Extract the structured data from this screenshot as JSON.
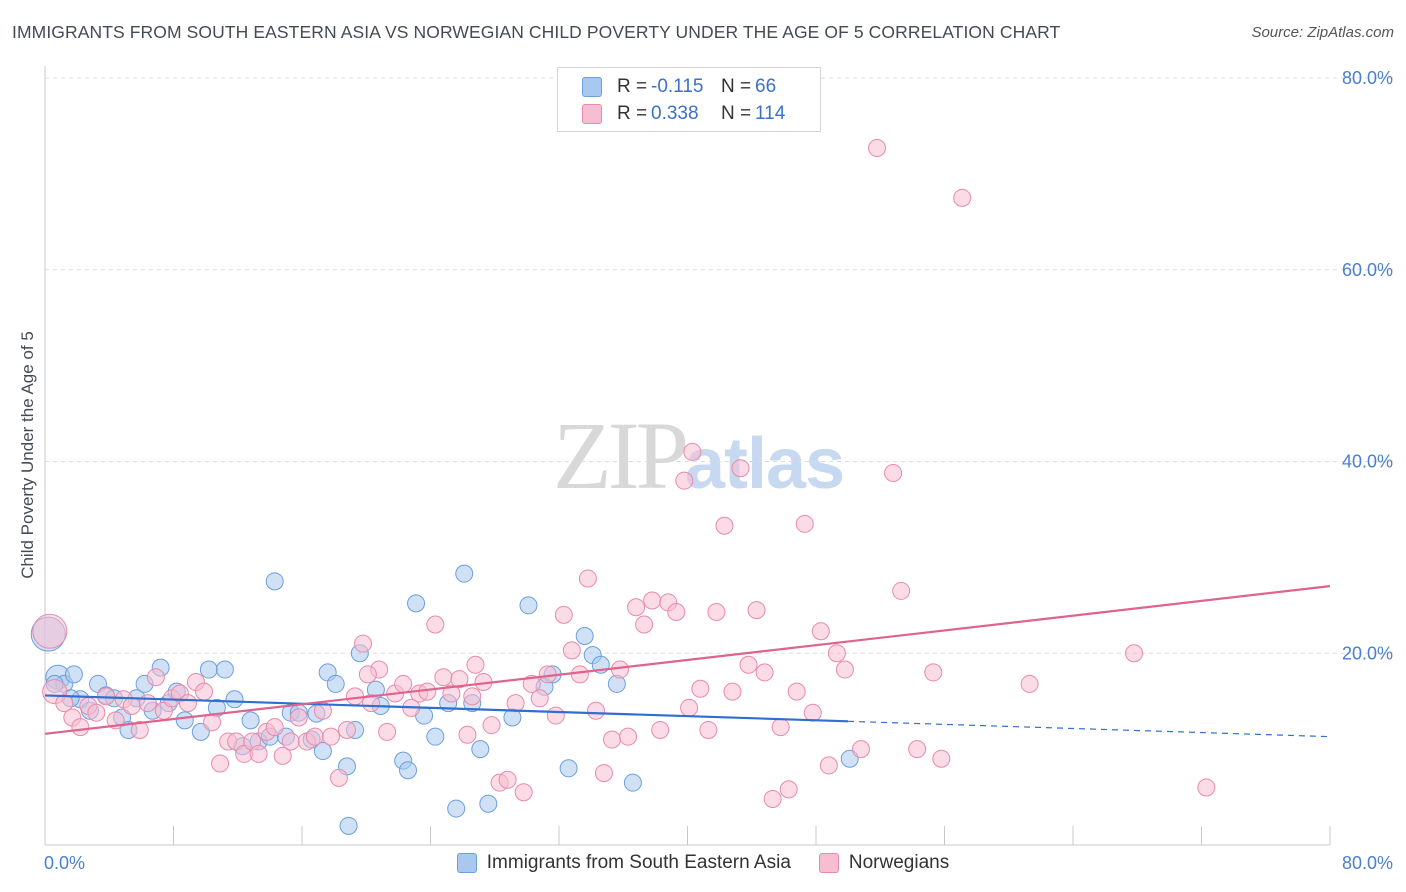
{
  "header": {
    "title": "IMMIGRANTS FROM SOUTH EASTERN ASIA VS NORWEGIAN CHILD POVERTY UNDER THE AGE OF 5 CORRELATION CHART",
    "source": "Source: ZipAtlas.com"
  },
  "watermark": {
    "zip": "ZIP",
    "atlas": "atlas"
  },
  "legend": {
    "rows": [
      {
        "r_label": "R =",
        "r_value": "-0.115",
        "n_label": "N =",
        "n_value": "66",
        "color": "#a9c8ef",
        "border": "#6b9fe0"
      },
      {
        "r_label": "R =",
        "r_value": "0.338",
        "n_label": "N =",
        "n_value": "114",
        "color": "#f7bdd0",
        "border": "#ea8aab"
      }
    ],
    "bottom": [
      {
        "label": "Immigrants from South Eastern Asia",
        "color": "#a9c8ef",
        "border": "#6b9fe0"
      },
      {
        "label": "Norwegians",
        "color": "#f7bdd0",
        "border": "#ea8aab"
      }
    ]
  },
  "chart_data": {
    "type": "scatter",
    "title": "IMMIGRANTS FROM SOUTH EASTERN ASIA VS NORWEGIAN CHILD POVERTY UNDER THE AGE OF 5 CORRELATION CHART",
    "xlabel": "",
    "ylabel": "Child Poverty Under the Age of 5",
    "xlim": [
      0,
      80
    ],
    "ylim": [
      0,
      80
    ],
    "x_tick_labels": [
      "0.0%",
      "80.0%"
    ],
    "y_ticks": [
      20,
      40,
      60,
      80
    ],
    "y_tick_labels": [
      "20.0%",
      "40.0%",
      "60.0%",
      "80.0%"
    ],
    "series": [
      {
        "name": "Immigrants from South Eastern Asia",
        "color": "#a9c8ef",
        "stroke": "#6b9fe0",
        "trend": {
          "x0": 0,
          "y0": 15.6,
          "x1": 50,
          "y1": 12.9,
          "dash_x1": 80,
          "dash_y1": 11.3,
          "color": "#2f6fd0"
        },
        "points": [
          [
            0.2,
            22.0,
            3
          ],
          [
            0.8,
            17.5,
            2
          ],
          [
            1.2,
            16.8,
            1
          ],
          [
            1.8,
            17.8,
            1
          ],
          [
            2.2,
            15.2,
            1
          ],
          [
            2.8,
            14.0,
            1
          ],
          [
            3.3,
            16.8,
            1
          ],
          [
            3.8,
            15.6,
            1
          ],
          [
            4.3,
            15.3,
            1
          ],
          [
            4.8,
            13.3,
            1
          ],
          [
            5.2,
            12.0,
            1
          ],
          [
            5.7,
            15.3,
            1
          ],
          [
            6.2,
            16.8,
            1
          ],
          [
            6.7,
            14.0,
            1
          ],
          [
            7.2,
            18.5,
            1
          ],
          [
            7.7,
            14.8,
            1
          ],
          [
            8.2,
            16.0,
            1
          ],
          [
            8.7,
            13.0,
            1
          ],
          [
            9.7,
            11.8,
            1
          ],
          [
            10.2,
            18.3,
            1
          ],
          [
            10.7,
            14.3,
            1
          ],
          [
            11.2,
            18.3,
            1
          ],
          [
            11.8,
            15.2,
            1
          ],
          [
            12.3,
            10.3,
            1
          ],
          [
            12.8,
            13.0,
            1
          ],
          [
            13.3,
            10.8,
            1
          ],
          [
            14.0,
            11.3,
            1
          ],
          [
            14.3,
            27.5,
            1
          ],
          [
            15.0,
            11.3,
            1
          ],
          [
            15.3,
            13.8,
            1
          ],
          [
            15.8,
            13.8,
            1
          ],
          [
            16.6,
            11.0,
            1
          ],
          [
            16.9,
            13.7,
            1
          ],
          [
            17.3,
            9.8,
            1
          ],
          [
            17.6,
            18.0,
            1
          ],
          [
            18.1,
            16.8,
            1
          ],
          [
            18.8,
            8.2,
            1
          ],
          [
            19.3,
            12.0,
            1
          ],
          [
            19.6,
            20.0,
            1
          ],
          [
            20.6,
            16.2,
            1
          ],
          [
            20.9,
            14.5,
            1
          ],
          [
            22.3,
            8.8,
            1
          ],
          [
            22.6,
            7.8,
            1
          ],
          [
            23.1,
            25.2,
            1
          ],
          [
            23.6,
            13.5,
            1
          ],
          [
            24.3,
            11.3,
            1
          ],
          [
            25.1,
            14.8,
            1
          ],
          [
            25.6,
            3.8,
            1
          ],
          [
            26.1,
            28.3,
            1
          ],
          [
            26.6,
            14.8,
            1
          ],
          [
            27.1,
            10.0,
            1
          ],
          [
            27.6,
            4.3,
            1
          ],
          [
            29.1,
            13.3,
            1
          ],
          [
            30.1,
            25.0,
            1
          ],
          [
            31.1,
            16.5,
            1
          ],
          [
            31.6,
            17.8,
            1
          ],
          [
            32.6,
            8.0,
            1
          ],
          [
            33.6,
            21.8,
            1
          ],
          [
            34.1,
            19.8,
            1
          ],
          [
            34.6,
            18.8,
            1
          ],
          [
            35.6,
            16.8,
            1
          ],
          [
            36.6,
            6.5,
            1
          ],
          [
            18.9,
            2.0,
            1
          ],
          [
            50.1,
            9.0,
            1
          ],
          [
            0.6,
            16.8,
            1
          ],
          [
            1.6,
            15.3,
            1
          ]
        ]
      },
      {
        "name": "Norwegians",
        "color": "#f7bdd0",
        "stroke": "#ea8aab",
        "trend": {
          "x0": 0,
          "y0": 11.6,
          "x1": 80,
          "y1": 27.0,
          "color": "#e0628f"
        },
        "points": [
          [
            0.3,
            22.3,
            3
          ],
          [
            0.6,
            16.0,
            2
          ],
          [
            1.2,
            14.8,
            1
          ],
          [
            1.7,
            13.3,
            1
          ],
          [
            2.2,
            12.3,
            1
          ],
          [
            2.7,
            14.5,
            1
          ],
          [
            3.2,
            13.8,
            1
          ],
          [
            3.8,
            15.5,
            1
          ],
          [
            4.4,
            13.0,
            1
          ],
          [
            4.9,
            15.2,
            1
          ],
          [
            5.4,
            14.5,
            1
          ],
          [
            5.9,
            12.0,
            1
          ],
          [
            6.4,
            14.8,
            1
          ],
          [
            6.9,
            17.5,
            1
          ],
          [
            7.4,
            14.0,
            1
          ],
          [
            7.9,
            15.3,
            1
          ],
          [
            8.4,
            15.8,
            1
          ],
          [
            8.9,
            14.8,
            1
          ],
          [
            9.4,
            17.0,
            1
          ],
          [
            9.9,
            16.0,
            1
          ],
          [
            10.4,
            12.8,
            1
          ],
          [
            10.9,
            8.5,
            1
          ],
          [
            11.4,
            10.8,
            1
          ],
          [
            11.9,
            10.8,
            1
          ],
          [
            12.4,
            9.5,
            1
          ],
          [
            12.9,
            10.8,
            1
          ],
          [
            13.3,
            9.5,
            1
          ],
          [
            13.8,
            11.8,
            1
          ],
          [
            14.3,
            12.3,
            1
          ],
          [
            14.8,
            9.3,
            1
          ],
          [
            15.3,
            10.8,
            1
          ],
          [
            15.8,
            13.3,
            1
          ],
          [
            16.3,
            10.8,
            1
          ],
          [
            16.8,
            11.3,
            1
          ],
          [
            17.3,
            14.0,
            1
          ],
          [
            17.8,
            11.3,
            1
          ],
          [
            18.3,
            7.0,
            1
          ],
          [
            18.8,
            12.0,
            1
          ],
          [
            19.3,
            15.5,
            1
          ],
          [
            19.8,
            21.0,
            1
          ],
          [
            20.3,
            14.8,
            1
          ],
          [
            20.8,
            18.3,
            1
          ],
          [
            21.3,
            11.8,
            1
          ],
          [
            21.8,
            15.8,
            1
          ],
          [
            22.3,
            16.8,
            1
          ],
          [
            22.8,
            14.3,
            1
          ],
          [
            23.3,
            15.8,
            1
          ],
          [
            23.8,
            16.0,
            1
          ],
          [
            24.3,
            23.0,
            1
          ],
          [
            24.8,
            17.5,
            1
          ],
          [
            25.3,
            15.8,
            1
          ],
          [
            25.8,
            17.3,
            1
          ],
          [
            26.3,
            11.5,
            1
          ],
          [
            26.8,
            18.8,
            1
          ],
          [
            27.3,
            17.0,
            1
          ],
          [
            27.8,
            12.5,
            1
          ],
          [
            28.3,
            6.5,
            1
          ],
          [
            28.8,
            6.8,
            1
          ],
          [
            29.3,
            14.8,
            1
          ],
          [
            29.8,
            5.5,
            1
          ],
          [
            30.3,
            16.8,
            1
          ],
          [
            30.8,
            15.3,
            1
          ],
          [
            31.3,
            17.8,
            1
          ],
          [
            31.8,
            13.5,
            1
          ],
          [
            32.3,
            24.0,
            1
          ],
          [
            32.8,
            20.3,
            1
          ],
          [
            33.3,
            17.8,
            1
          ],
          [
            33.8,
            27.8,
            1
          ],
          [
            34.3,
            14.0,
            1
          ],
          [
            34.8,
            7.5,
            1
          ],
          [
            35.3,
            11.0,
            1
          ],
          [
            35.8,
            18.3,
            1
          ],
          [
            36.3,
            11.3,
            1
          ],
          [
            36.8,
            24.8,
            1
          ],
          [
            37.3,
            23.0,
            1
          ],
          [
            37.8,
            25.5,
            1
          ],
          [
            38.3,
            12.0,
            1
          ],
          [
            38.8,
            25.3,
            1
          ],
          [
            39.3,
            24.3,
            1
          ],
          [
            39.8,
            38.0,
            1
          ],
          [
            40.3,
            41.0,
            1
          ],
          [
            40.8,
            16.3,
            1
          ],
          [
            41.3,
            12.0,
            1
          ],
          [
            41.8,
            24.3,
            1
          ],
          [
            42.3,
            33.3,
            1
          ],
          [
            42.8,
            16.0,
            1
          ],
          [
            43.3,
            39.3,
            1
          ],
          [
            43.8,
            18.8,
            1
          ],
          [
            44.3,
            24.5,
            1
          ],
          [
            44.8,
            18.0,
            1
          ],
          [
            45.3,
            4.8,
            1
          ],
          [
            45.8,
            12.3,
            1
          ],
          [
            46.3,
            5.8,
            1
          ],
          [
            46.8,
            16.0,
            1
          ],
          [
            47.3,
            33.5,
            1
          ],
          [
            47.8,
            13.8,
            1
          ],
          [
            48.3,
            22.3,
            1
          ],
          [
            48.8,
            8.3,
            1
          ],
          [
            49.3,
            20.0,
            1
          ],
          [
            49.8,
            18.3,
            1
          ],
          [
            50.8,
            10.0,
            1
          ],
          [
            52.8,
            38.8,
            1
          ],
          [
            53.3,
            26.5,
            1
          ],
          [
            54.3,
            10.0,
            1
          ],
          [
            55.3,
            18.0,
            1
          ],
          [
            55.8,
            9.0,
            1
          ],
          [
            57.1,
            67.5,
            1
          ],
          [
            51.8,
            72.7,
            1
          ],
          [
            61.3,
            16.8,
            1
          ],
          [
            67.8,
            20.0,
            1
          ],
          [
            72.3,
            6.0,
            1
          ],
          [
            20.1,
            17.8,
            1
          ],
          [
            26.6,
            15.5,
            1
          ],
          [
            40.1,
            14.3,
            1
          ]
        ]
      }
    ]
  }
}
